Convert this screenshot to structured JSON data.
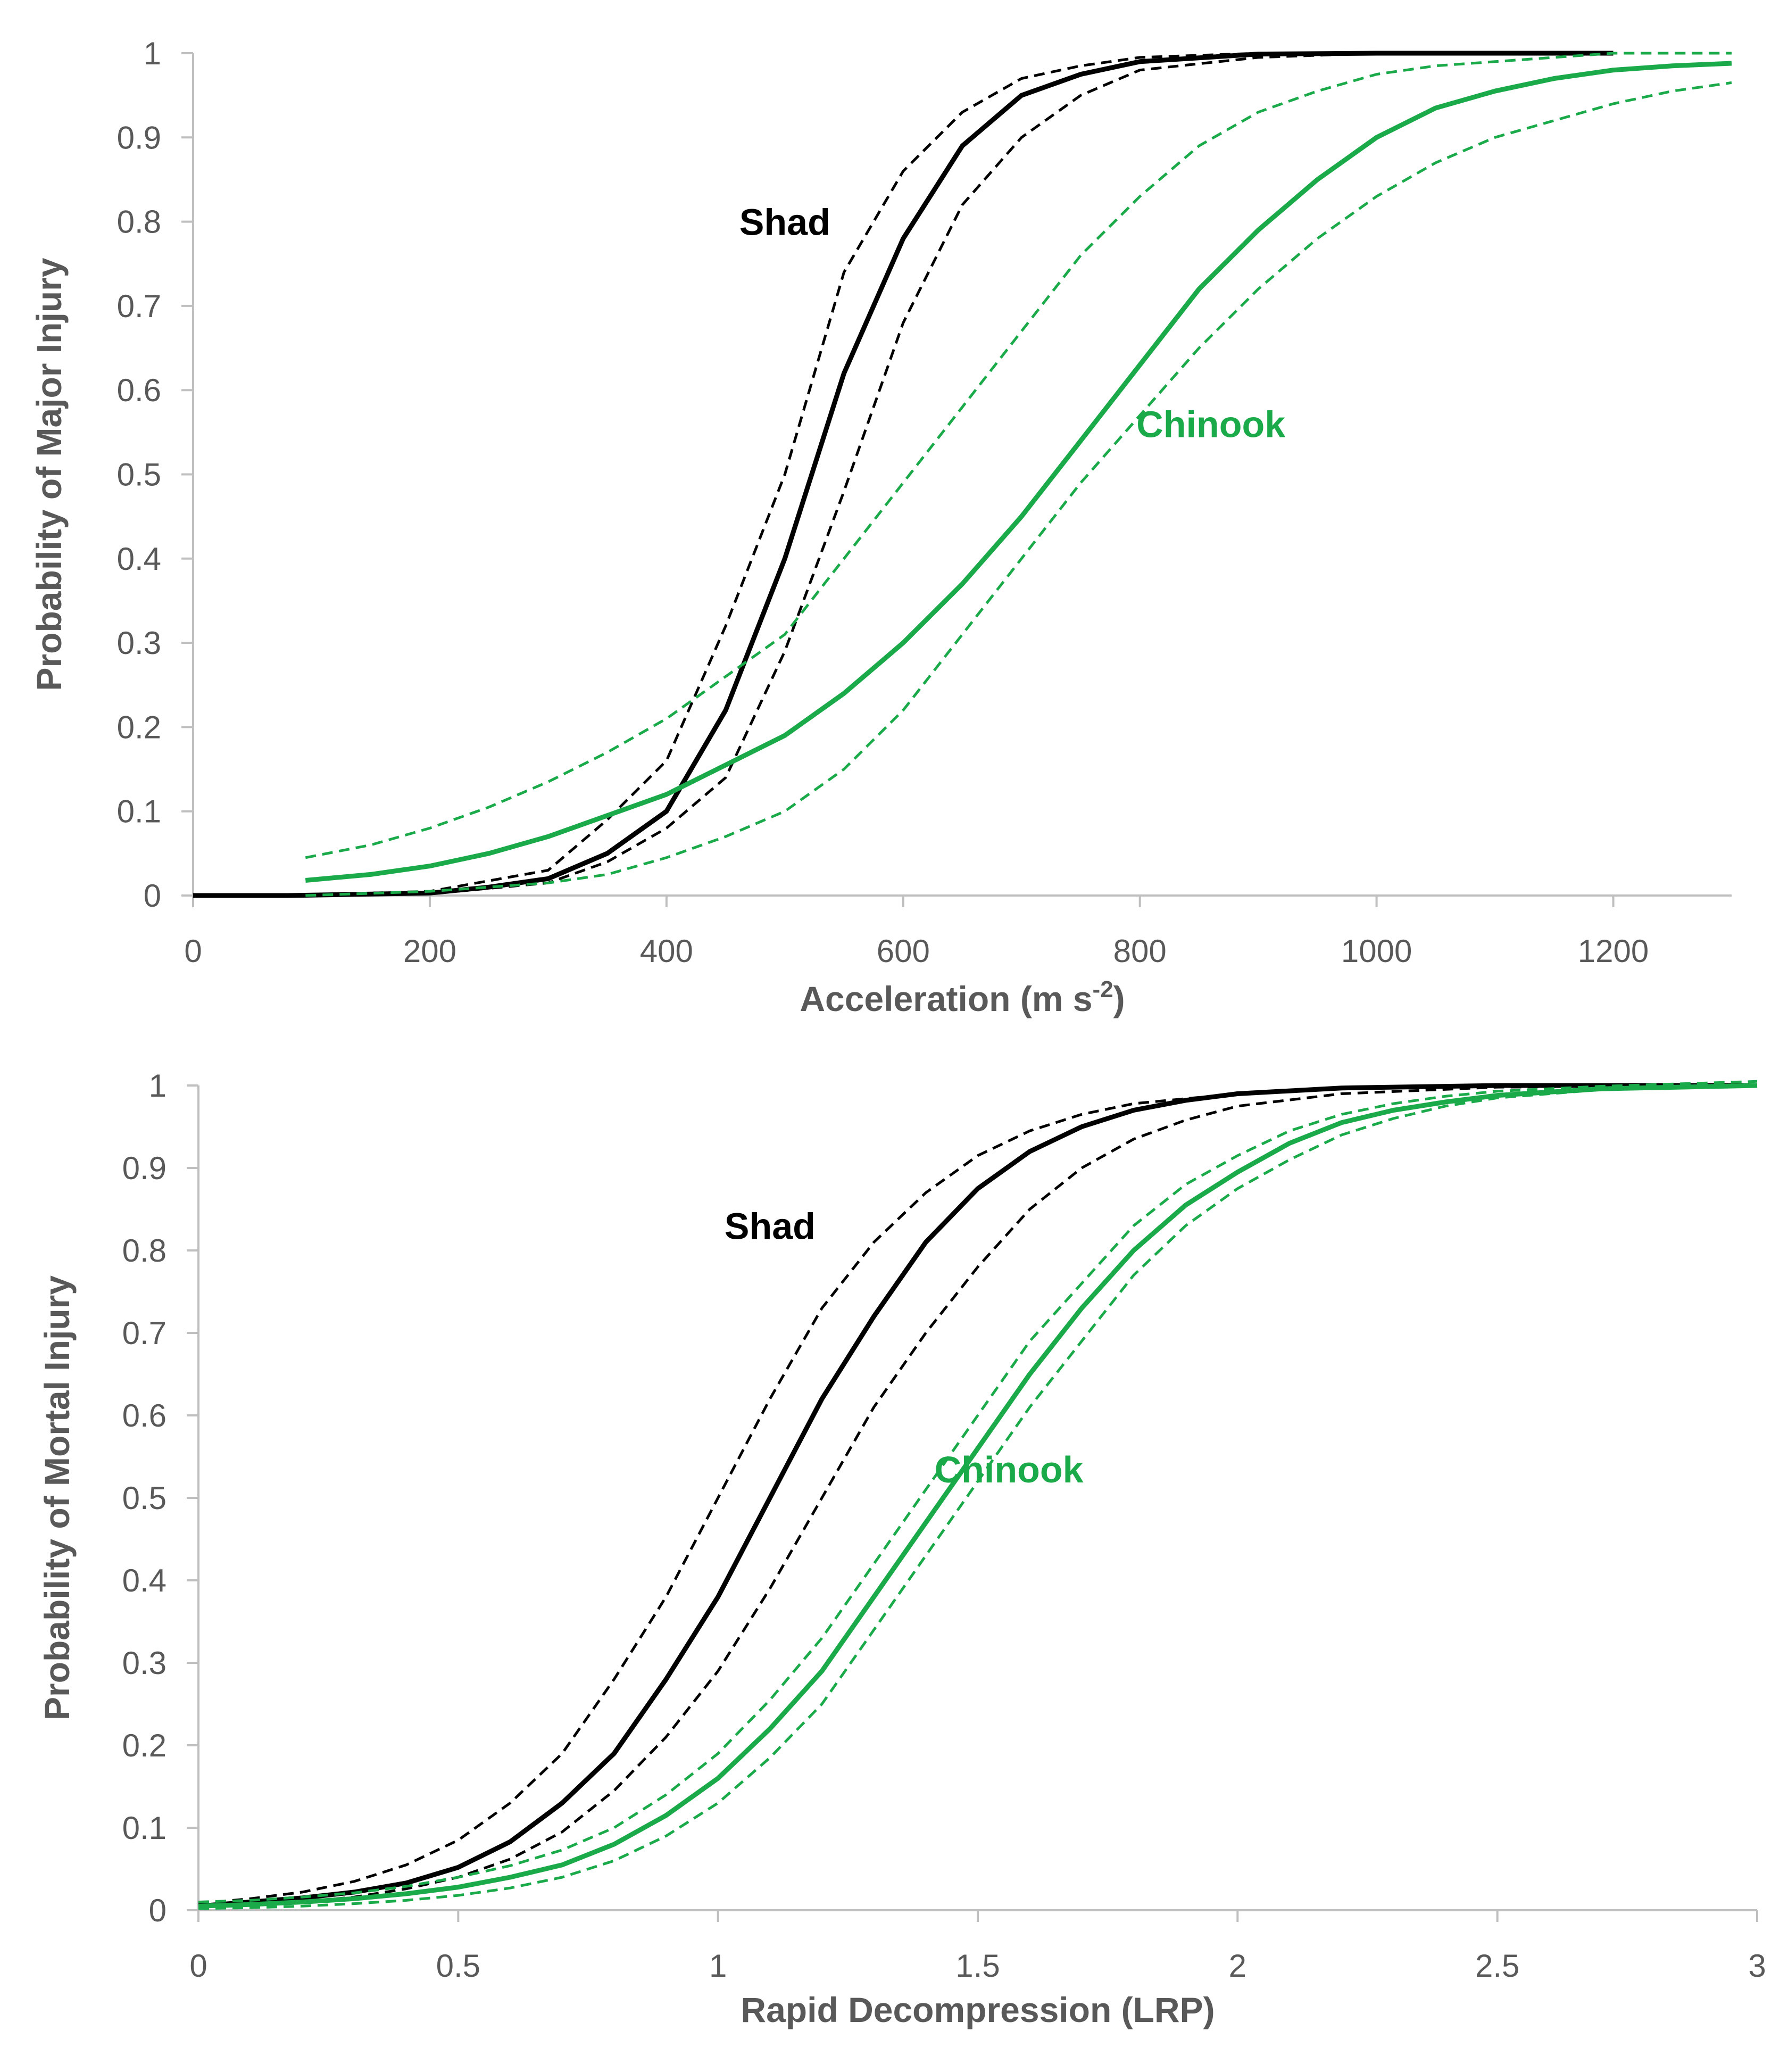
{
  "colors": {
    "shad": "#000000",
    "chinook": "#1aaa4a",
    "axis": "#bfbfbf",
    "text": "#595959"
  },
  "chart_data": [
    {
      "type": "line",
      "xlabel": "Acceleration (m s-2)",
      "xlabel_base": "Acceleration (m s",
      "xlabel_sup": "-2",
      "xlabel_tail": ")",
      "ylabel": "Probability of Major Injury",
      "xlim": [
        0,
        1300
      ],
      "ylim": [
        0,
        1
      ],
      "xticks": [
        "0",
        "200",
        "400",
        "600",
        "800",
        "1000",
        "1200"
      ],
      "yticks": [
        "0",
        "0.1",
        "0.2",
        "0.3",
        "0.4",
        "0.5",
        "0.6",
        "0.7",
        "0.8",
        "0.9",
        "1"
      ],
      "grid": false,
      "annotations": [
        {
          "text": "Shad",
          "color": "#000000",
          "x": 500,
          "y": 0.8
        },
        {
          "text": "Chinook",
          "color": "#1aaa4a",
          "x": 860,
          "y": 0.56
        }
      ],
      "series": [
        {
          "species": "Shad",
          "style": "solid",
          "color": "#000000",
          "x": [
            0,
            80,
            200,
            250,
            300,
            350,
            400,
            450,
            500,
            550,
            600,
            650,
            700,
            750,
            800,
            900,
            1000,
            1200
          ],
          "y": [
            0,
            0,
            0.003,
            0.01,
            0.02,
            0.05,
            0.1,
            0.22,
            0.4,
            0.62,
            0.78,
            0.89,
            0.95,
            0.975,
            0.99,
            0.999,
            1.0,
            1.0
          ]
        },
        {
          "species": "Shad",
          "style": "dashed",
          "color": "#000000",
          "x": [
            80,
            200,
            300,
            350,
            400,
            450,
            500,
            550,
            600,
            650,
            700,
            750,
            800,
            900,
            1000
          ],
          "y": [
            0.0,
            0.005,
            0.03,
            0.09,
            0.16,
            0.32,
            0.5,
            0.74,
            0.86,
            0.93,
            0.97,
            0.985,
            0.995,
            1.0,
            1.0
          ]
        },
        {
          "species": "Shad",
          "style": "dashed",
          "color": "#000000",
          "x": [
            80,
            200,
            300,
            350,
            400,
            450,
            500,
            550,
            600,
            650,
            700,
            750,
            800,
            900,
            1000,
            1200
          ],
          "y": [
            0.0,
            0.002,
            0.015,
            0.04,
            0.08,
            0.14,
            0.29,
            0.48,
            0.68,
            0.82,
            0.9,
            0.95,
            0.98,
            0.995,
            1.0,
            1.0
          ]
        },
        {
          "species": "Chinook",
          "style": "solid",
          "color": "#1aaa4a",
          "x": [
            95,
            150,
            200,
            250,
            300,
            350,
            400,
            450,
            500,
            550,
            600,
            650,
            700,
            750,
            800,
            850,
            900,
            950,
            1000,
            1050,
            1100,
            1150,
            1200,
            1250,
            1300
          ],
          "y": [
            0.018,
            0.025,
            0.035,
            0.05,
            0.07,
            0.095,
            0.12,
            0.155,
            0.19,
            0.24,
            0.3,
            0.37,
            0.45,
            0.54,
            0.63,
            0.72,
            0.79,
            0.85,
            0.9,
            0.935,
            0.955,
            0.97,
            0.98,
            0.985,
            0.988
          ]
        },
        {
          "species": "Chinook",
          "style": "dashed",
          "color": "#1aaa4a",
          "x": [
            95,
            150,
            200,
            250,
            300,
            350,
            400,
            450,
            500,
            550,
            600,
            650,
            700,
            750,
            800,
            850,
            900,
            950,
            1000,
            1050,
            1100,
            1150,
            1200,
            1250,
            1300
          ],
          "y": [
            0.045,
            0.06,
            0.08,
            0.105,
            0.135,
            0.17,
            0.21,
            0.26,
            0.31,
            0.4,
            0.49,
            0.58,
            0.67,
            0.76,
            0.83,
            0.89,
            0.93,
            0.955,
            0.975,
            0.985,
            0.99,
            0.995,
            1.0,
            1.0,
            1.0
          ]
        },
        {
          "species": "Chinook",
          "style": "dashed",
          "color": "#1aaa4a",
          "x": [
            95,
            200,
            300,
            350,
            400,
            450,
            500,
            550,
            600,
            650,
            700,
            750,
            800,
            850,
            900,
            950,
            1000,
            1050,
            1100,
            1150,
            1200,
            1250,
            1300
          ],
          "y": [
            0.0,
            0.005,
            0.015,
            0.025,
            0.045,
            0.07,
            0.1,
            0.15,
            0.22,
            0.31,
            0.4,
            0.49,
            0.57,
            0.65,
            0.72,
            0.78,
            0.83,
            0.87,
            0.9,
            0.92,
            0.94,
            0.955,
            0.965
          ]
        }
      ]
    },
    {
      "type": "line",
      "xlabel": "Rapid Decompression (LRP)",
      "ylabel": "Probability of Mortal Injury",
      "xlim": [
        0,
        3
      ],
      "ylim": [
        0,
        1
      ],
      "xticks": [
        "0",
        "0.5",
        "1",
        "1.5",
        "2",
        "2.5",
        "3"
      ],
      "yticks": [
        "0",
        "0.1",
        "0.2",
        "0.3",
        "0.4",
        "0.5",
        "0.6",
        "0.7",
        "0.8",
        "0.9",
        "1"
      ],
      "grid": false,
      "annotations": [
        {
          "text": "Shad",
          "color": "#000000",
          "x": 1.1,
          "y": 0.83
        },
        {
          "text": "Chinook",
          "color": "#1aaa4a",
          "x": 1.56,
          "y": 0.535
        }
      ],
      "series": [
        {
          "species": "Shad",
          "style": "solid",
          "color": "#000000",
          "x": [
            0,
            0.1,
            0.2,
            0.3,
            0.4,
            0.5,
            0.6,
            0.7,
            0.8,
            0.9,
            1.0,
            1.1,
            1.2,
            1.3,
            1.4,
            1.5,
            1.6,
            1.7,
            1.8,
            1.9,
            2.0,
            2.2,
            2.5,
            3.0
          ],
          "y": [
            0.005,
            0.01,
            0.015,
            0.022,
            0.033,
            0.052,
            0.083,
            0.13,
            0.19,
            0.28,
            0.38,
            0.5,
            0.62,
            0.72,
            0.81,
            0.875,
            0.92,
            0.95,
            0.97,
            0.982,
            0.99,
            0.997,
            1.0,
            1.0
          ]
        },
        {
          "species": "Shad",
          "style": "dashed",
          "color": "#000000",
          "x": [
            0,
            0.1,
            0.2,
            0.3,
            0.4,
            0.5,
            0.6,
            0.7,
            0.8,
            0.9,
            1.0,
            1.1,
            1.2,
            1.3,
            1.4,
            1.5,
            1.6,
            1.7,
            1.8,
            2.0,
            2.2,
            2.5,
            3.0
          ],
          "y": [
            0.008,
            0.014,
            0.022,
            0.035,
            0.055,
            0.085,
            0.13,
            0.19,
            0.28,
            0.38,
            0.5,
            0.62,
            0.73,
            0.81,
            0.87,
            0.915,
            0.945,
            0.965,
            0.978,
            0.99,
            0.997,
            1.0,
            1.0
          ]
        },
        {
          "species": "Shad",
          "style": "dashed",
          "color": "#000000",
          "x": [
            0,
            0.1,
            0.2,
            0.3,
            0.4,
            0.5,
            0.6,
            0.7,
            0.8,
            0.9,
            1.0,
            1.1,
            1.2,
            1.3,
            1.4,
            1.5,
            1.6,
            1.7,
            1.8,
            1.9,
            2.0,
            2.2,
            2.5,
            3.0
          ],
          "y": [
            0.003,
            0.006,
            0.01,
            0.016,
            0.026,
            0.04,
            0.062,
            0.095,
            0.145,
            0.21,
            0.29,
            0.39,
            0.5,
            0.61,
            0.7,
            0.78,
            0.85,
            0.9,
            0.935,
            0.958,
            0.975,
            0.99,
            0.998,
            1.0
          ]
        },
        {
          "species": "Chinook",
          "style": "solid",
          "color": "#1aaa4a",
          "x": [
            0,
            0.1,
            0.2,
            0.3,
            0.4,
            0.5,
            0.6,
            0.7,
            0.8,
            0.9,
            1.0,
            1.1,
            1.2,
            1.3,
            1.4,
            1.5,
            1.6,
            1.7,
            1.8,
            1.9,
            2.0,
            2.1,
            2.2,
            2.3,
            2.4,
            2.5,
            2.7,
            3.0
          ],
          "y": [
            0.005,
            0.007,
            0.01,
            0.014,
            0.02,
            0.028,
            0.04,
            0.055,
            0.08,
            0.115,
            0.16,
            0.22,
            0.29,
            0.38,
            0.47,
            0.56,
            0.65,
            0.73,
            0.8,
            0.855,
            0.895,
            0.93,
            0.955,
            0.97,
            0.98,
            0.988,
            0.996,
            1.0
          ]
        },
        {
          "species": "Chinook",
          "style": "dashed",
          "color": "#1aaa4a",
          "x": [
            0,
            0.1,
            0.2,
            0.3,
            0.4,
            0.5,
            0.6,
            0.7,
            0.8,
            0.9,
            1.0,
            1.1,
            1.2,
            1.3,
            1.4,
            1.5,
            1.6,
            1.7,
            1.8,
            1.9,
            2.0,
            2.1,
            2.2,
            2.3,
            2.4,
            2.5,
            2.7,
            3.0
          ],
          "y": [
            0.01,
            0.012,
            0.016,
            0.021,
            0.029,
            0.04,
            0.054,
            0.073,
            0.1,
            0.14,
            0.19,
            0.255,
            0.33,
            0.42,
            0.51,
            0.6,
            0.69,
            0.76,
            0.83,
            0.88,
            0.915,
            0.945,
            0.965,
            0.978,
            0.987,
            0.993,
            0.999,
            1.005
          ]
        },
        {
          "species": "Chinook",
          "style": "dashed",
          "color": "#1aaa4a",
          "x": [
            0,
            0.1,
            0.2,
            0.3,
            0.4,
            0.5,
            0.6,
            0.7,
            0.8,
            0.9,
            1.0,
            1.1,
            1.2,
            1.3,
            1.4,
            1.5,
            1.6,
            1.7,
            1.8,
            1.9,
            2.0,
            2.1,
            2.2,
            2.3,
            2.4,
            2.5,
            2.7,
            3.0
          ],
          "y": [
            0.002,
            0.003,
            0.005,
            0.008,
            0.012,
            0.018,
            0.027,
            0.04,
            0.06,
            0.09,
            0.13,
            0.185,
            0.25,
            0.34,
            0.43,
            0.52,
            0.61,
            0.69,
            0.77,
            0.83,
            0.875,
            0.91,
            0.94,
            0.96,
            0.975,
            0.985,
            0.995,
            1.0
          ]
        }
      ]
    }
  ]
}
